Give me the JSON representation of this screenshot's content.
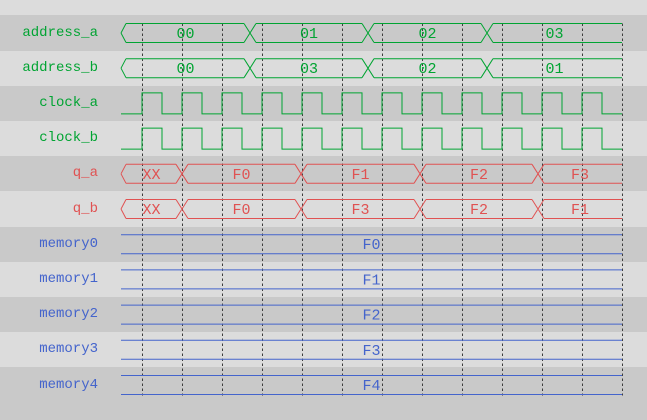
{
  "window_title": "wave",
  "palette": {
    "background": "#c9c9c9",
    "stripe_light": "#dcdcdc",
    "grid_color": "#3d3d3d",
    "green": "#00a432",
    "red": "#e05252",
    "blue": "#4464cc"
  },
  "timeline": {
    "wave_x_start": 121,
    "wave_x_end": 622,
    "grid_x_start": 142,
    "grid_x_step": 40,
    "grid_count": 13,
    "grid_y_top": 23.5,
    "grid_y_bottom": 395.5,
    "row_y_first_center": 33,
    "row_pitch": 35.2,
    "stripe_y_start": 15.4
  },
  "signals": [
    {
      "name": "address_a",
      "kind": "bus",
      "color_key": "green",
      "transitions": [
        250,
        368,
        487
      ],
      "values": [
        "00",
        "01",
        "02",
        "03"
      ]
    },
    {
      "name": "address_b",
      "kind": "bus",
      "color_key": "green",
      "transitions": [
        250,
        368,
        487
      ],
      "values": [
        "00",
        "03",
        "02",
        "01"
      ]
    },
    {
      "name": "clock_a",
      "kind": "clock",
      "color_key": "green",
      "first_rise": 142,
      "half_period": 20
    },
    {
      "name": "clock_b",
      "kind": "clock",
      "color_key": "green",
      "first_rise": 142,
      "half_period": 20
    },
    {
      "name": "q_a",
      "kind": "bus",
      "color_key": "red",
      "transitions": [
        182,
        301,
        420,
        538
      ],
      "values": [
        "XX",
        "F0",
        "F1",
        "F2",
        "F3"
      ]
    },
    {
      "name": "q_b",
      "kind": "bus",
      "color_key": "red",
      "transitions": [
        182,
        301,
        420,
        538
      ],
      "values": [
        "XX",
        "F0",
        "F3",
        "F2",
        "F1"
      ]
    },
    {
      "name": "memory0",
      "kind": "flat_bus",
      "color_key": "blue",
      "values": [
        "F0"
      ]
    },
    {
      "name": "memory1",
      "kind": "flat_bus",
      "color_key": "blue",
      "values": [
        "F1"
      ]
    },
    {
      "name": "memory2",
      "kind": "flat_bus",
      "color_key": "blue",
      "values": [
        "F2"
      ]
    },
    {
      "name": "memory3",
      "kind": "flat_bus",
      "color_key": "blue",
      "values": [
        "F3"
      ]
    },
    {
      "name": "memory4",
      "kind": "flat_bus",
      "color_key": "blue",
      "values": [
        "F4"
      ]
    }
  ]
}
